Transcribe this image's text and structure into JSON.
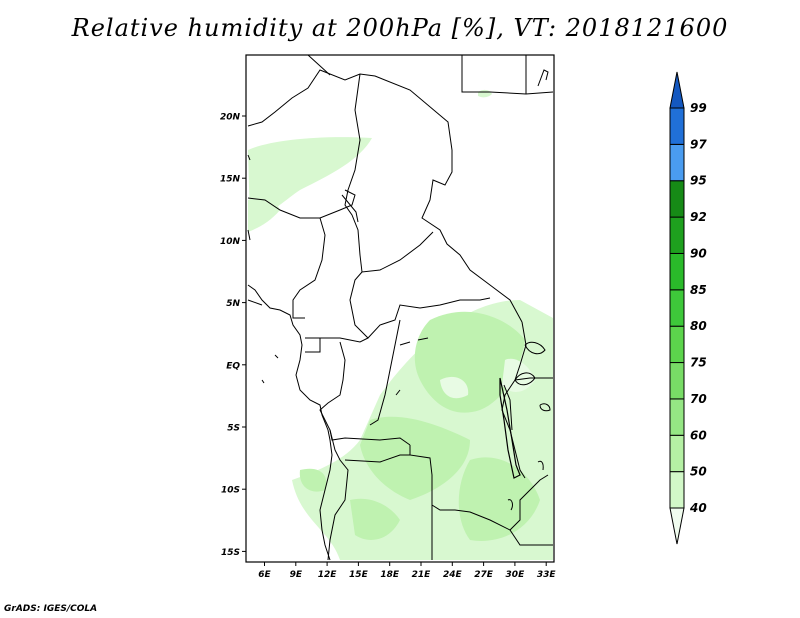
{
  "title": "Relative humidity at 200hPa [%], VT: 2018121600",
  "footer": "GrADS: IGES/COLA",
  "map": {
    "lat_labels": [
      "20N",
      "15N",
      "10N",
      "5N",
      "EQ",
      "5S",
      "10S",
      "15S"
    ],
    "lon_labels": [
      "6E",
      "9E",
      "12E",
      "15E",
      "18E",
      "21E",
      "24E",
      "27E",
      "30E",
      "33E"
    ]
  },
  "colorbar": {
    "levels": [
      "40",
      "50",
      "60",
      "70",
      "75",
      "80",
      "85",
      "90",
      "92",
      "95",
      "97",
      "99"
    ],
    "colors": [
      "#f0fcef",
      "#d2f8c8",
      "#b5f0a4",
      "#95e684",
      "#78dc66",
      "#5cd44c",
      "#3ec83a",
      "#2aba2a",
      "#1ea01e",
      "#168a16",
      "#4a9cf0",
      "#2070d8",
      "#1458c0"
    ]
  }
}
